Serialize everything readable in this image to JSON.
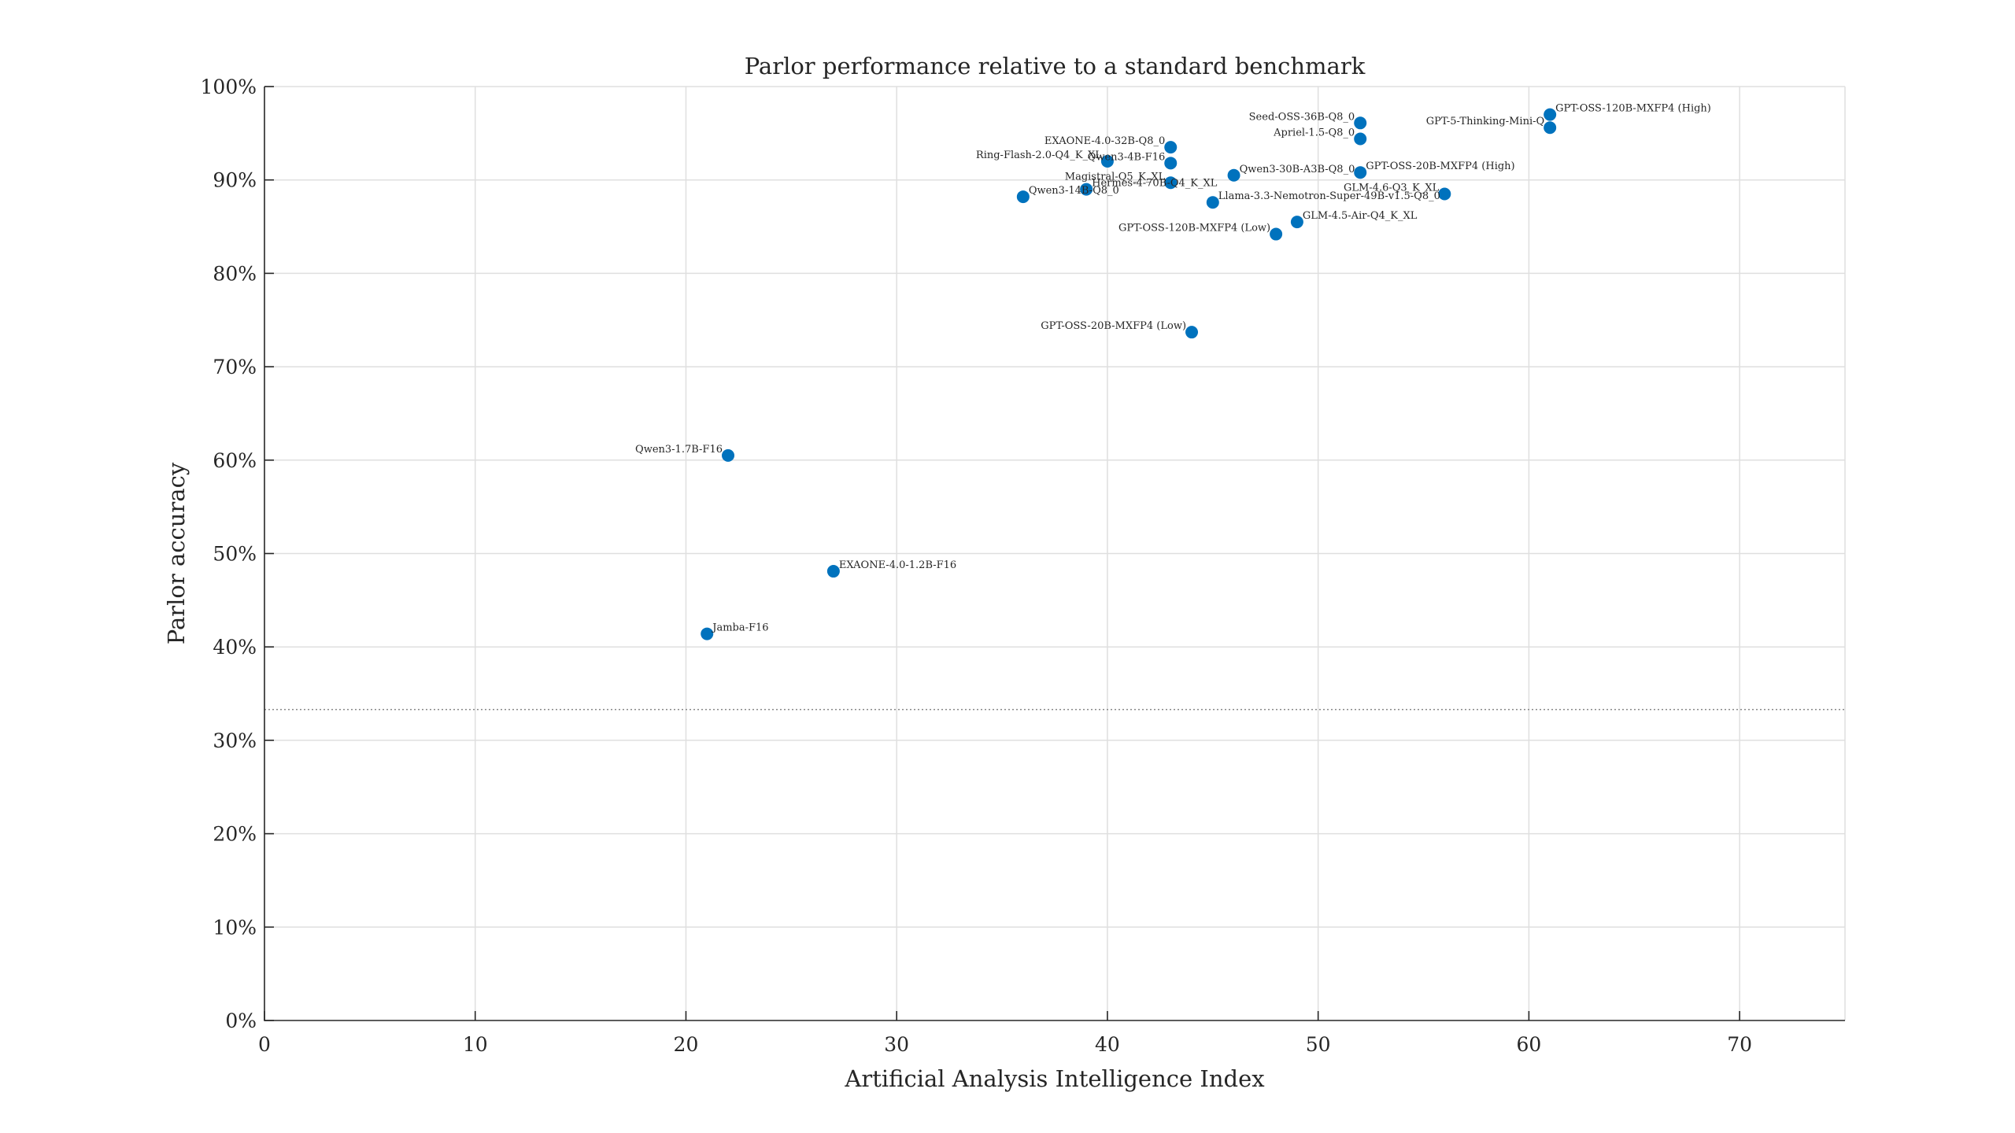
{
  "chart_data": {
    "type": "scatter",
    "title": "Parlor performance relative to a standard benchmark",
    "xlabel": "Artificial Analysis Intelligence Index",
    "ylabel": "Parlor accuracy",
    "xlim": [
      0,
      75
    ],
    "ylim": [
      0,
      100
    ],
    "xticks": [
      0,
      10,
      20,
      30,
      40,
      50,
      60,
      70
    ],
    "yticks": [
      0,
      10,
      20,
      30,
      40,
      50,
      60,
      70,
      80,
      90,
      100
    ],
    "yticklabels": [
      "0%",
      "10%",
      "20%",
      "30%",
      "40%",
      "50%",
      "60%",
      "70%",
      "80%",
      "90%",
      "100%"
    ],
    "grid": true,
    "reference_line_y": 33.3,
    "marker_color": "#0072bd",
    "points": [
      {
        "label": "GPT-OSS-120B-MXFP4 (High)",
        "x": 61,
        "y": 97.0,
        "side": "right"
      },
      {
        "label": "GPT-5-Thinking-Mini-Q",
        "x": 61,
        "y": 95.6,
        "side": "left"
      },
      {
        "label": "Seed-OSS-36B-Q8_0",
        "x": 52,
        "y": 96.1,
        "side": "left"
      },
      {
        "label": "Apriel-1.5-Q8_0",
        "x": 52,
        "y": 94.4,
        "side": "left"
      },
      {
        "label": "GPT-OSS-20B-MXFP4 (High)",
        "x": 52,
        "y": 90.8,
        "side": "right"
      },
      {
        "label": "EXAONE-4.0-32B-Q8_0",
        "x": 43,
        "y": 93.5,
        "side": "left"
      },
      {
        "label": "Qwen3-4B-F16",
        "x": 43,
        "y": 91.8,
        "side": "left"
      },
      {
        "label": "Magistral-Q5_K_XL",
        "x": 43,
        "y": 89.7,
        "side": "left"
      },
      {
        "label": "Ring-Flash-2.0-Q4_K_XL",
        "x": 40,
        "y": 92.0,
        "side": "left"
      },
      {
        "label": "Hermes-4-70B-Q4_K_XL",
        "x": 39,
        "y": 89.0,
        "side": "right"
      },
      {
        "label": "Qwen3-14B-Q8_0",
        "x": 36,
        "y": 88.2,
        "side": "right"
      },
      {
        "label": "Qwen3-30B-A3B-Q8_0",
        "x": 46,
        "y": 90.5,
        "side": "right"
      },
      {
        "label": "Llama-3.3-Nemotron-Super-49B-v1.5-Q8_0",
        "x": 45,
        "y": 87.6,
        "side": "right"
      },
      {
        "label": "GLM-4.6-Q3_K_XL",
        "x": 56,
        "y": 88.5,
        "side": "left"
      },
      {
        "label": "GLM-4.5-Air-Q4_K_XL",
        "x": 49,
        "y": 85.5,
        "side": "right"
      },
      {
        "label": "GPT-OSS-120B-MXFP4 (Low)",
        "x": 48,
        "y": 84.2,
        "side": "left"
      },
      {
        "label": "GPT-OSS-20B-MXFP4 (Low)",
        "x": 44,
        "y": 73.7,
        "side": "left"
      },
      {
        "label": "Qwen3-1.7B-F16",
        "x": 22,
        "y": 60.5,
        "side": "left"
      },
      {
        "label": "EXAONE-4.0-1.2B-F16",
        "x": 27,
        "y": 48.1,
        "side": "right"
      },
      {
        "label": "Jamba-F16",
        "x": 21,
        "y": 41.4,
        "side": "right"
      }
    ]
  }
}
